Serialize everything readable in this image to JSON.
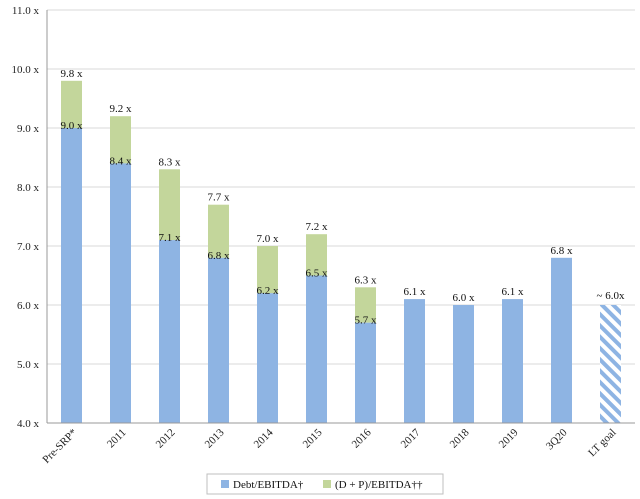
{
  "chart_data": {
    "type": "bar",
    "stacked": true,
    "categories": [
      "Pre-SRP*",
      "2011",
      "2012",
      "2013",
      "2014",
      "2015",
      "2016",
      "2017",
      "2018",
      "2019",
      "3Q20",
      "LT goal"
    ],
    "series": [
      {
        "name": "Debt/EBITDA†",
        "color": "#8eb4e3",
        "values": [
          9.0,
          8.4,
          7.1,
          6.8,
          6.2,
          6.5,
          5.7,
          6.1,
          6.0,
          6.1,
          6.8,
          null
        ],
        "labels": [
          "9.0 x",
          "8.4 x",
          "7.1 x",
          "6.8 x",
          "6.2 x",
          "6.5 x",
          "5.7 x",
          "6.1 x",
          "6.0 x",
          "6.1 x",
          "6.8 x",
          ""
        ]
      },
      {
        "name": "(D + P)/EBITDA††",
        "color": "#c3d69b",
        "totals": [
          9.8,
          9.2,
          8.3,
          7.7,
          7.0,
          7.2,
          6.3,
          null,
          null,
          null,
          null,
          null
        ],
        "labels": [
          "9.8 x",
          "9.2 x",
          "8.3 x",
          "7.7 x",
          "7.0 x",
          "7.2 x",
          "6.3 x",
          "",
          "",
          "",
          "",
          ""
        ]
      }
    ],
    "goal": {
      "category": "LT goal",
      "value": 6.0,
      "label": "~ 6.0x",
      "pattern": "diagonal-stripes",
      "color": "#8eb4e3"
    },
    "y_ticks": [
      "4.0 x",
      "5.0 x",
      "6.0 x",
      "7.0 x",
      "8.0 x",
      "9.0 x",
      "10.0 x",
      "11.0 x"
    ],
    "y_tick_values": [
      4,
      5,
      6,
      7,
      8,
      9,
      10,
      11
    ],
    "ylim": [
      4.0,
      11.0
    ],
    "grid": true,
    "legend_position": "bottom-center",
    "title": "",
    "xlabel": "",
    "ylabel": ""
  }
}
